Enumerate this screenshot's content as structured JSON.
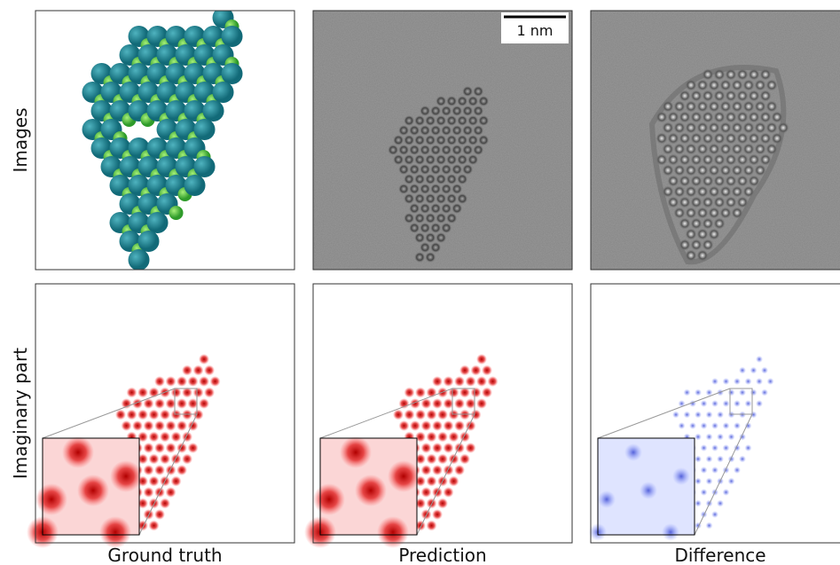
{
  "row_labels": [
    "Images",
    "Imaginary part"
  ],
  "column_labels": [
    "Ground truth",
    "Prediction",
    "Difference"
  ],
  "scale_bar": "1 nm"
}
